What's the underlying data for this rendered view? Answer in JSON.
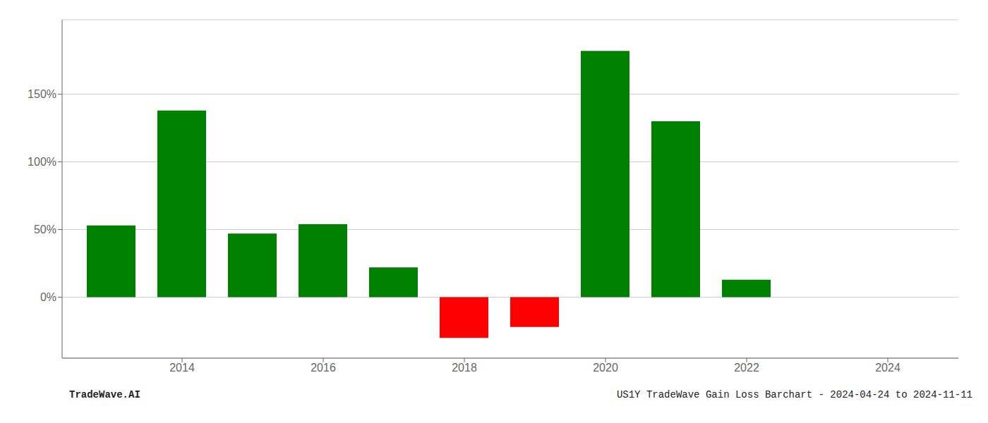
{
  "chart_data": {
    "type": "bar",
    "x": [
      2013,
      2014,
      2015,
      2016,
      2017,
      2018,
      2019,
      2020,
      2021,
      2022,
      2023
    ],
    "values": [
      0.53,
      1.38,
      0.47,
      0.54,
      0.22,
      -0.3,
      -0.22,
      1.82,
      1.3,
      0.13,
      0.0
    ],
    "colors": [
      "#008000",
      "#008000",
      "#008000",
      "#008000",
      "#008000",
      "#ff0000",
      "#ff0000",
      "#008000",
      "#008000",
      "#008000",
      "#008000"
    ],
    "xlim": [
      2012.3,
      2025.0
    ],
    "xticks": [
      2014,
      2016,
      2018,
      2020,
      2022,
      2024
    ],
    "ylim": [
      -0.45,
      2.05
    ],
    "yticks": [
      {
        "value": 0.0,
        "label": "0%"
      },
      {
        "value": 0.5,
        "label": "50%"
      },
      {
        "value": 1.0,
        "label": "100%"
      },
      {
        "value": 1.5,
        "label": "150%"
      }
    ],
    "grid": true,
    "annotations": [
      "TradeWave.AI",
      "US1Y TradeWave Gain Loss Barchart - 2024-04-24 to 2024-11-11"
    ]
  }
}
